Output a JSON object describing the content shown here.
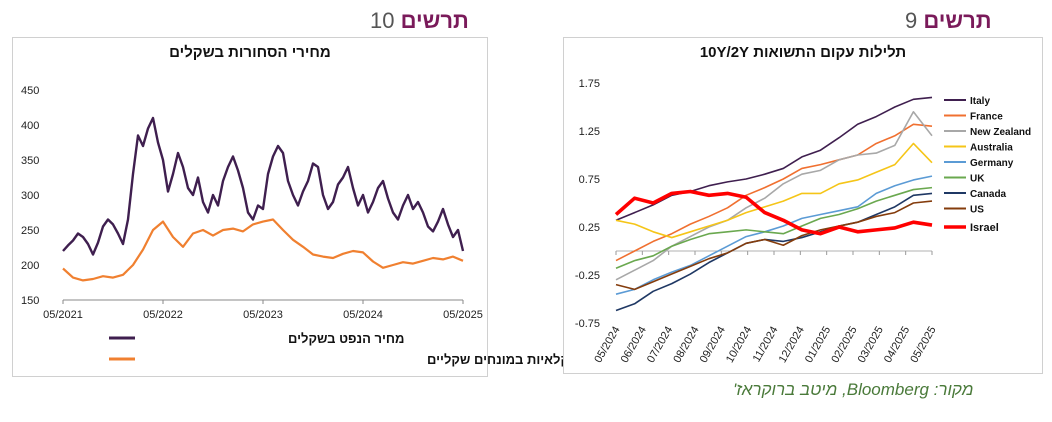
{
  "figures": {
    "left_label_word": "תרשים",
    "left_label_num": "10",
    "right_label_word": "תרשים",
    "right_label_num": "9"
  },
  "source": "מקור: Bloomberg, מיטב ברוקראז'",
  "chart_data": [
    {
      "type": "line",
      "title": "מחירי הסחורות בשקלים",
      "x_ticks": [
        "05/2021",
        "05/2022",
        "05/2023",
        "05/2024",
        "05/2025"
      ],
      "x_range": [
        "2021-05",
        "2025-05"
      ],
      "y_ticks": [
        150,
        200,
        250,
        300,
        350,
        400,
        450
      ],
      "ylim": [
        150,
        450
      ],
      "legend_position": "bottom",
      "series": [
        {
          "name": "מחיר הנפט בשקלים",
          "color": "#3f1f4f",
          "x": [
            0,
            0.05,
            0.1,
            0.15,
            0.2,
            0.25,
            0.3,
            0.35,
            0.4,
            0.45,
            0.5,
            0.55,
            0.6,
            0.65,
            0.7,
            0.75,
            0.8,
            0.85,
            0.9,
            0.95,
            1.0,
            1.05,
            1.1,
            1.15,
            1.2,
            1.25,
            1.3,
            1.35,
            1.4,
            1.45,
            1.5,
            1.55,
            1.6,
            1.65,
            1.7,
            1.75,
            1.8,
            1.85,
            1.9,
            1.95,
            2.0,
            2.05,
            2.1,
            2.15,
            2.2,
            2.25,
            2.3,
            2.35,
            2.4,
            2.45,
            2.5,
            2.55,
            2.6,
            2.65,
            2.7,
            2.75,
            2.8,
            2.85,
            2.9,
            2.95,
            3.0,
            3.05,
            3.1,
            3.15,
            3.2,
            3.25,
            3.3,
            3.35,
            3.4,
            3.45,
            3.5,
            3.55,
            3.6,
            3.65,
            3.7,
            3.75,
            3.8,
            3.85,
            3.9,
            3.95,
            4.0
          ],
          "values": [
            220,
            228,
            235,
            245,
            240,
            230,
            215,
            232,
            255,
            265,
            258,
            245,
            230,
            265,
            330,
            385,
            370,
            395,
            410,
            375,
            350,
            305,
            330,
            360,
            340,
            310,
            300,
            325,
            290,
            275,
            300,
            285,
            320,
            340,
            355,
            335,
            310,
            275,
            265,
            285,
            280,
            330,
            355,
            370,
            360,
            320,
            300,
            285,
            305,
            320,
            345,
            340,
            300,
            280,
            290,
            315,
            325,
            340,
            310,
            285,
            300,
            275,
            290,
            310,
            320,
            295,
            275,
            265,
            285,
            300,
            280,
            290,
            275,
            255,
            248,
            262,
            280,
            258,
            240,
            250,
            220
          ]
        },
        {
          "name": "מדד הסחורות החקלאיות במונחים שקליים",
          "color": "#f08030",
          "x": [
            0,
            0.1,
            0.2,
            0.3,
            0.4,
            0.5,
            0.6,
            0.7,
            0.8,
            0.9,
            1.0,
            1.1,
            1.2,
            1.3,
            1.4,
            1.5,
            1.6,
            1.7,
            1.8,
            1.9,
            2.0,
            2.1,
            2.2,
            2.3,
            2.4,
            2.5,
            2.6,
            2.7,
            2.8,
            2.9,
            3.0,
            3.1,
            3.2,
            3.3,
            3.4,
            3.5,
            3.6,
            3.7,
            3.8,
            3.9,
            4.0
          ],
          "values": [
            195,
            182,
            178,
            180,
            184,
            182,
            186,
            200,
            222,
            250,
            262,
            240,
            226,
            245,
            250,
            242,
            250,
            252,
            248,
            258,
            262,
            265,
            250,
            236,
            226,
            215,
            212,
            210,
            216,
            220,
            218,
            205,
            196,
            200,
            204,
            202,
            206,
            210,
            208,
            212,
            206
          ]
        }
      ]
    },
    {
      "type": "line",
      "title": "תלילות עקום התשואות 10Y/2Y",
      "x_ticks": [
        "05/2024",
        "06/2024",
        "07/2024",
        "08/2024",
        "09/2024",
        "10/2024",
        "11/2024",
        "12/2024",
        "01/2025",
        "02/2025",
        "03/2025",
        "04/2025",
        "05/2025"
      ],
      "y_ticks": [
        -0.75,
        -0.25,
        0.25,
        0.75,
        1.25,
        1.75
      ],
      "ylim": [
        -0.75,
        1.75
      ],
      "legend_position": "right",
      "series": [
        {
          "name": "Italy",
          "color": "#3f1f4f",
          "values": [
            0.32,
            0.4,
            0.48,
            0.58,
            0.62,
            0.68,
            0.72,
            0.75,
            0.8,
            0.86,
            0.98,
            1.05,
            1.18,
            1.32,
            1.4,
            1.5,
            1.58,
            1.6
          ]
        },
        {
          "name": "France",
          "color": "#f07030",
          "values": [
            -0.1,
            0.0,
            0.1,
            0.18,
            0.28,
            0.36,
            0.45,
            0.58,
            0.66,
            0.75,
            0.86,
            0.9,
            0.95,
            1.0,
            1.12,
            1.2,
            1.32,
            1.3
          ]
        },
        {
          "name": "New Zealand",
          "color": "#a8a8a8",
          "values": [
            -0.3,
            -0.2,
            -0.1,
            0.05,
            0.15,
            0.25,
            0.32,
            0.45,
            0.55,
            0.7,
            0.8,
            0.84,
            0.95,
            1.0,
            1.02,
            1.1,
            1.45,
            1.2
          ]
        },
        {
          "name": "Australia",
          "color": "#f5c518",
          "values": [
            0.32,
            0.28,
            0.2,
            0.14,
            0.2,
            0.26,
            0.32,
            0.4,
            0.46,
            0.52,
            0.6,
            0.6,
            0.7,
            0.74,
            0.82,
            0.9,
            1.12,
            0.92
          ]
        },
        {
          "name": "Germany",
          "color": "#5b9bd5",
          "values": [
            -0.45,
            -0.4,
            -0.3,
            -0.22,
            -0.15,
            -0.05,
            0.05,
            0.15,
            0.2,
            0.26,
            0.34,
            0.38,
            0.42,
            0.46,
            0.6,
            0.68,
            0.74,
            0.78
          ]
        },
        {
          "name": "UK",
          "color": "#6aa84f",
          "values": [
            -0.18,
            -0.1,
            -0.05,
            0.05,
            0.12,
            0.18,
            0.2,
            0.22,
            0.2,
            0.18,
            0.26,
            0.34,
            0.38,
            0.44,
            0.52,
            0.58,
            0.64,
            0.66
          ]
        },
        {
          "name": "Canada",
          "color": "#1f3864",
          "values": [
            -0.62,
            -0.55,
            -0.42,
            -0.34,
            -0.24,
            -0.12,
            -0.02,
            0.08,
            0.12,
            0.1,
            0.14,
            0.2,
            0.26,
            0.3,
            0.38,
            0.46,
            0.58,
            0.6
          ]
        },
        {
          "name": "US",
          "color": "#843c0c",
          "values": [
            -0.35,
            -0.4,
            -0.32,
            -0.24,
            -0.16,
            -0.08,
            -0.02,
            0.08,
            0.12,
            0.06,
            0.16,
            0.22,
            0.26,
            0.3,
            0.36,
            0.4,
            0.5,
            0.52
          ]
        },
        {
          "name": "Israel",
          "color": "#ff0000",
          "values": [
            0.38,
            0.55,
            0.5,
            0.6,
            0.62,
            0.58,
            0.6,
            0.56,
            0.4,
            0.32,
            0.22,
            0.18,
            0.25,
            0.2,
            0.22,
            0.24,
            0.3,
            0.27
          ]
        }
      ]
    }
  ]
}
